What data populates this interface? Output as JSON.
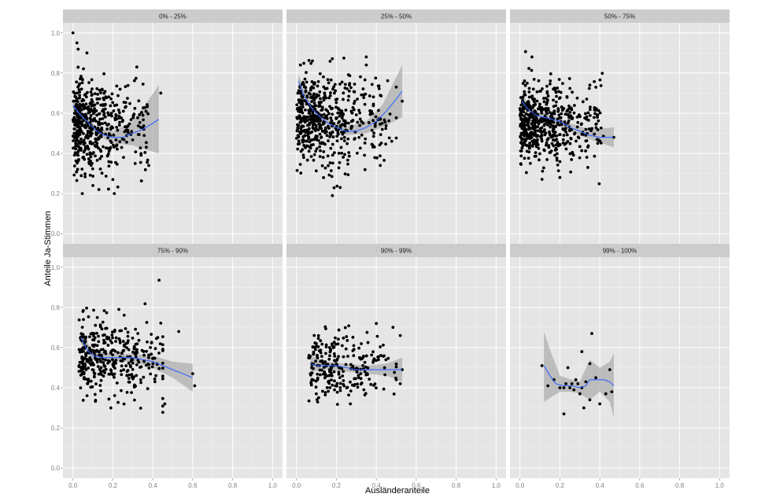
{
  "chart_data": {
    "type": "scatter",
    "xlabel": "Ausländeranteile",
    "ylabel": "Anteile Ja-Stimmen",
    "xlim": [
      0,
      1.0
    ],
    "ylim": [
      0,
      1.0
    ],
    "x_ticks": [
      "0.0",
      "0.2",
      "0.4",
      "0.6",
      "0.8",
      "1.0"
    ],
    "y_ticks": [
      "0.0",
      "0.2",
      "0.4",
      "0.6",
      "0.8",
      "1.0"
    ],
    "grid": true,
    "layout": "facet grid, 2 rows x 3 columns",
    "colors": {
      "panel": "#e5e5e5",
      "strip": "#cccccc",
      "points": "#000000",
      "smooth_line": "#3366ff",
      "confidence_band": "#a6a6a6"
    },
    "panels": [
      {
        "label": "0% - 25%",
        "smooth": [
          [
            0.0,
            0.64
          ],
          [
            0.03,
            0.6
          ],
          [
            0.06,
            0.57
          ],
          [
            0.09,
            0.54
          ],
          [
            0.12,
            0.51
          ],
          [
            0.16,
            0.49
          ],
          [
            0.2,
            0.48
          ],
          [
            0.25,
            0.48
          ],
          [
            0.3,
            0.5
          ],
          [
            0.35,
            0.52
          ],
          [
            0.4,
            0.55
          ],
          [
            0.43,
            0.57
          ]
        ],
        "band_upper": [
          [
            0.0,
            0.67
          ],
          [
            0.06,
            0.59
          ],
          [
            0.12,
            0.53
          ],
          [
            0.2,
            0.51
          ],
          [
            0.3,
            0.56
          ],
          [
            0.36,
            0.64
          ],
          [
            0.43,
            0.74
          ]
        ],
        "band_lower": [
          [
            0.0,
            0.61
          ],
          [
            0.06,
            0.55
          ],
          [
            0.12,
            0.49
          ],
          [
            0.2,
            0.45
          ],
          [
            0.3,
            0.44
          ],
          [
            0.36,
            0.42
          ],
          [
            0.43,
            0.4
          ]
        ],
        "highlight_points": [
          [
            0.0,
            1.0
          ],
          [
            0.02,
            0.95
          ],
          [
            0.07,
            0.9
          ],
          [
            0.32,
            0.83
          ],
          [
            0.44,
            0.7
          ],
          [
            0.1,
            0.24
          ],
          [
            0.13,
            0.22
          ],
          [
            0.2,
            0.27
          ],
          [
            0.38,
            0.34
          ]
        ],
        "cluster": {
          "x_min": 0.0,
          "x_max": 0.4,
          "x_peak": 0.06,
          "y_mean": 0.54,
          "y_sd": 0.12,
          "n": 500
        }
      },
      {
        "label": "25% - 50%",
        "smooth": [
          [
            0.01,
            0.76
          ],
          [
            0.04,
            0.68
          ],
          [
            0.08,
            0.62
          ],
          [
            0.12,
            0.58
          ],
          [
            0.16,
            0.55
          ],
          [
            0.2,
            0.53
          ],
          [
            0.25,
            0.51
          ],
          [
            0.3,
            0.51
          ],
          [
            0.35,
            0.53
          ],
          [
            0.4,
            0.56
          ],
          [
            0.45,
            0.61
          ],
          [
            0.5,
            0.67
          ],
          [
            0.53,
            0.71
          ]
        ],
        "band_upper": [
          [
            0.01,
            0.79
          ],
          [
            0.08,
            0.64
          ],
          [
            0.16,
            0.57
          ],
          [
            0.25,
            0.53
          ],
          [
            0.35,
            0.56
          ],
          [
            0.43,
            0.64
          ],
          [
            0.53,
            0.84
          ]
        ],
        "band_lower": [
          [
            0.01,
            0.73
          ],
          [
            0.08,
            0.6
          ],
          [
            0.16,
            0.53
          ],
          [
            0.25,
            0.49
          ],
          [
            0.35,
            0.5
          ],
          [
            0.43,
            0.53
          ],
          [
            0.53,
            0.58
          ]
        ],
        "highlight_points": [
          [
            0.02,
            0.84
          ],
          [
            0.08,
            0.86
          ],
          [
            0.35,
            0.84
          ],
          [
            0.5,
            0.73
          ],
          [
            0.53,
            0.66
          ],
          [
            0.18,
            0.19
          ],
          [
            0.42,
            0.34
          ]
        ],
        "cluster": {
          "x_min": 0.0,
          "x_max": 0.5,
          "x_peak": 0.12,
          "y_mean": 0.56,
          "y_sd": 0.11,
          "n": 550
        }
      },
      {
        "label": "50% - 75%",
        "smooth": [
          [
            0.01,
            0.66
          ],
          [
            0.04,
            0.62
          ],
          [
            0.08,
            0.59
          ],
          [
            0.12,
            0.58
          ],
          [
            0.16,
            0.57
          ],
          [
            0.2,
            0.56
          ],
          [
            0.25,
            0.53
          ],
          [
            0.3,
            0.51
          ],
          [
            0.35,
            0.49
          ],
          [
            0.4,
            0.48
          ],
          [
            0.44,
            0.48
          ],
          [
            0.47,
            0.48
          ]
        ],
        "band_upper": [
          [
            0.01,
            0.69
          ],
          [
            0.08,
            0.61
          ],
          [
            0.16,
            0.59
          ],
          [
            0.25,
            0.55
          ],
          [
            0.35,
            0.52
          ],
          [
            0.47,
            0.53
          ]
        ],
        "band_lower": [
          [
            0.01,
            0.63
          ],
          [
            0.08,
            0.57
          ],
          [
            0.16,
            0.55
          ],
          [
            0.25,
            0.51
          ],
          [
            0.35,
            0.47
          ],
          [
            0.47,
            0.43
          ]
        ],
        "highlight_points": [
          [
            0.06,
            0.88
          ],
          [
            0.35,
            0.74
          ],
          [
            0.47,
            0.48
          ],
          [
            0.2,
            0.28
          ],
          [
            0.34,
            0.33
          ]
        ],
        "cluster": {
          "x_min": 0.0,
          "x_max": 0.44,
          "x_peak": 0.1,
          "y_mean": 0.55,
          "y_sd": 0.1,
          "n": 550
        }
      },
      {
        "label": "75% - 90%",
        "smooth": [
          [
            0.04,
            0.65
          ],
          [
            0.07,
            0.59
          ],
          [
            0.1,
            0.56
          ],
          [
            0.15,
            0.55
          ],
          [
            0.2,
            0.55
          ],
          [
            0.25,
            0.55
          ],
          [
            0.3,
            0.55
          ],
          [
            0.35,
            0.54
          ],
          [
            0.4,
            0.53
          ],
          [
            0.45,
            0.51
          ],
          [
            0.5,
            0.49
          ],
          [
            0.55,
            0.47
          ],
          [
            0.6,
            0.45
          ]
        ],
        "band_upper": [
          [
            0.04,
            0.68
          ],
          [
            0.1,
            0.58
          ],
          [
            0.2,
            0.57
          ],
          [
            0.3,
            0.57
          ],
          [
            0.4,
            0.56
          ],
          [
            0.5,
            0.53
          ],
          [
            0.6,
            0.52
          ]
        ],
        "band_lower": [
          [
            0.04,
            0.62
          ],
          [
            0.1,
            0.54
          ],
          [
            0.2,
            0.53
          ],
          [
            0.3,
            0.53
          ],
          [
            0.4,
            0.5
          ],
          [
            0.5,
            0.45
          ],
          [
            0.6,
            0.38
          ]
        ],
        "highlight_points": [
          [
            0.05,
            0.78
          ],
          [
            0.23,
            0.79
          ],
          [
            0.53,
            0.68
          ],
          [
            0.6,
            0.47
          ],
          [
            0.61,
            0.41
          ],
          [
            0.19,
            0.3
          ],
          [
            0.46,
            0.32
          ]
        ],
        "cluster": {
          "x_min": 0.03,
          "x_max": 0.45,
          "x_peak": 0.2,
          "y_mean": 0.55,
          "y_sd": 0.09,
          "n": 380
        }
      },
      {
        "label": "90% - 99%",
        "smooth": [
          [
            0.07,
            0.52
          ],
          [
            0.1,
            0.51
          ],
          [
            0.15,
            0.51
          ],
          [
            0.2,
            0.51
          ],
          [
            0.25,
            0.5
          ],
          [
            0.3,
            0.49
          ],
          [
            0.35,
            0.49
          ],
          [
            0.4,
            0.49
          ],
          [
            0.45,
            0.49
          ],
          [
            0.5,
            0.49
          ],
          [
            0.53,
            0.49
          ]
        ],
        "band_upper": [
          [
            0.07,
            0.56
          ],
          [
            0.15,
            0.53
          ],
          [
            0.25,
            0.52
          ],
          [
            0.35,
            0.51
          ],
          [
            0.45,
            0.52
          ],
          [
            0.53,
            0.55
          ]
        ],
        "band_lower": [
          [
            0.07,
            0.48
          ],
          [
            0.15,
            0.49
          ],
          [
            0.25,
            0.48
          ],
          [
            0.35,
            0.47
          ],
          [
            0.45,
            0.46
          ],
          [
            0.53,
            0.43
          ]
        ],
        "highlight_points": [
          [
            0.4,
            0.72
          ],
          [
            0.52,
            0.66
          ],
          [
            0.53,
            0.49
          ],
          [
            0.52,
            0.42
          ],
          [
            0.27,
            0.32
          ]
        ],
        "cluster": {
          "x_min": 0.06,
          "x_max": 0.5,
          "x_peak": 0.24,
          "y_mean": 0.51,
          "y_sd": 0.08,
          "n": 250
        }
      },
      {
        "label": "99% - 100%",
        "smooth": [
          [
            0.12,
            0.51
          ],
          [
            0.15,
            0.46
          ],
          [
            0.18,
            0.42
          ],
          [
            0.22,
            0.41
          ],
          [
            0.26,
            0.41
          ],
          [
            0.3,
            0.4
          ],
          [
            0.33,
            0.41
          ],
          [
            0.35,
            0.44
          ],
          [
            0.38,
            0.44
          ],
          [
            0.42,
            0.44
          ],
          [
            0.45,
            0.43
          ],
          [
            0.47,
            0.41
          ]
        ],
        "band_upper": [
          [
            0.12,
            0.68
          ],
          [
            0.15,
            0.59
          ],
          [
            0.2,
            0.46
          ],
          [
            0.26,
            0.44
          ],
          [
            0.3,
            0.43
          ],
          [
            0.35,
            0.54
          ],
          [
            0.4,
            0.5
          ],
          [
            0.45,
            0.53
          ],
          [
            0.47,
            0.57
          ]
        ],
        "band_lower": [
          [
            0.12,
            0.33
          ],
          [
            0.15,
            0.35
          ],
          [
            0.2,
            0.38
          ],
          [
            0.26,
            0.38
          ],
          [
            0.3,
            0.37
          ],
          [
            0.35,
            0.34
          ],
          [
            0.4,
            0.38
          ],
          [
            0.45,
            0.33
          ],
          [
            0.47,
            0.25
          ]
        ],
        "points": [
          [
            0.11,
            0.51
          ],
          [
            0.14,
            0.41
          ],
          [
            0.17,
            0.44
          ],
          [
            0.2,
            0.4
          ],
          [
            0.22,
            0.4
          ],
          [
            0.23,
            0.42
          ],
          [
            0.24,
            0.5
          ],
          [
            0.25,
            0.4
          ],
          [
            0.26,
            0.42
          ],
          [
            0.27,
            0.39
          ],
          [
            0.28,
            0.44
          ],
          [
            0.29,
            0.42
          ],
          [
            0.3,
            0.37
          ],
          [
            0.31,
            0.4
          ],
          [
            0.31,
            0.58
          ],
          [
            0.33,
            0.43
          ],
          [
            0.35,
            0.34
          ],
          [
            0.36,
            0.67
          ],
          [
            0.38,
            0.45
          ],
          [
            0.4,
            0.32
          ],
          [
            0.43,
            0.37
          ],
          [
            0.45,
            0.49
          ],
          [
            0.46,
            0.38
          ],
          [
            0.22,
            0.27
          ],
          [
            0.32,
            0.3
          ],
          [
            0.35,
            0.52
          ]
        ]
      }
    ]
  }
}
